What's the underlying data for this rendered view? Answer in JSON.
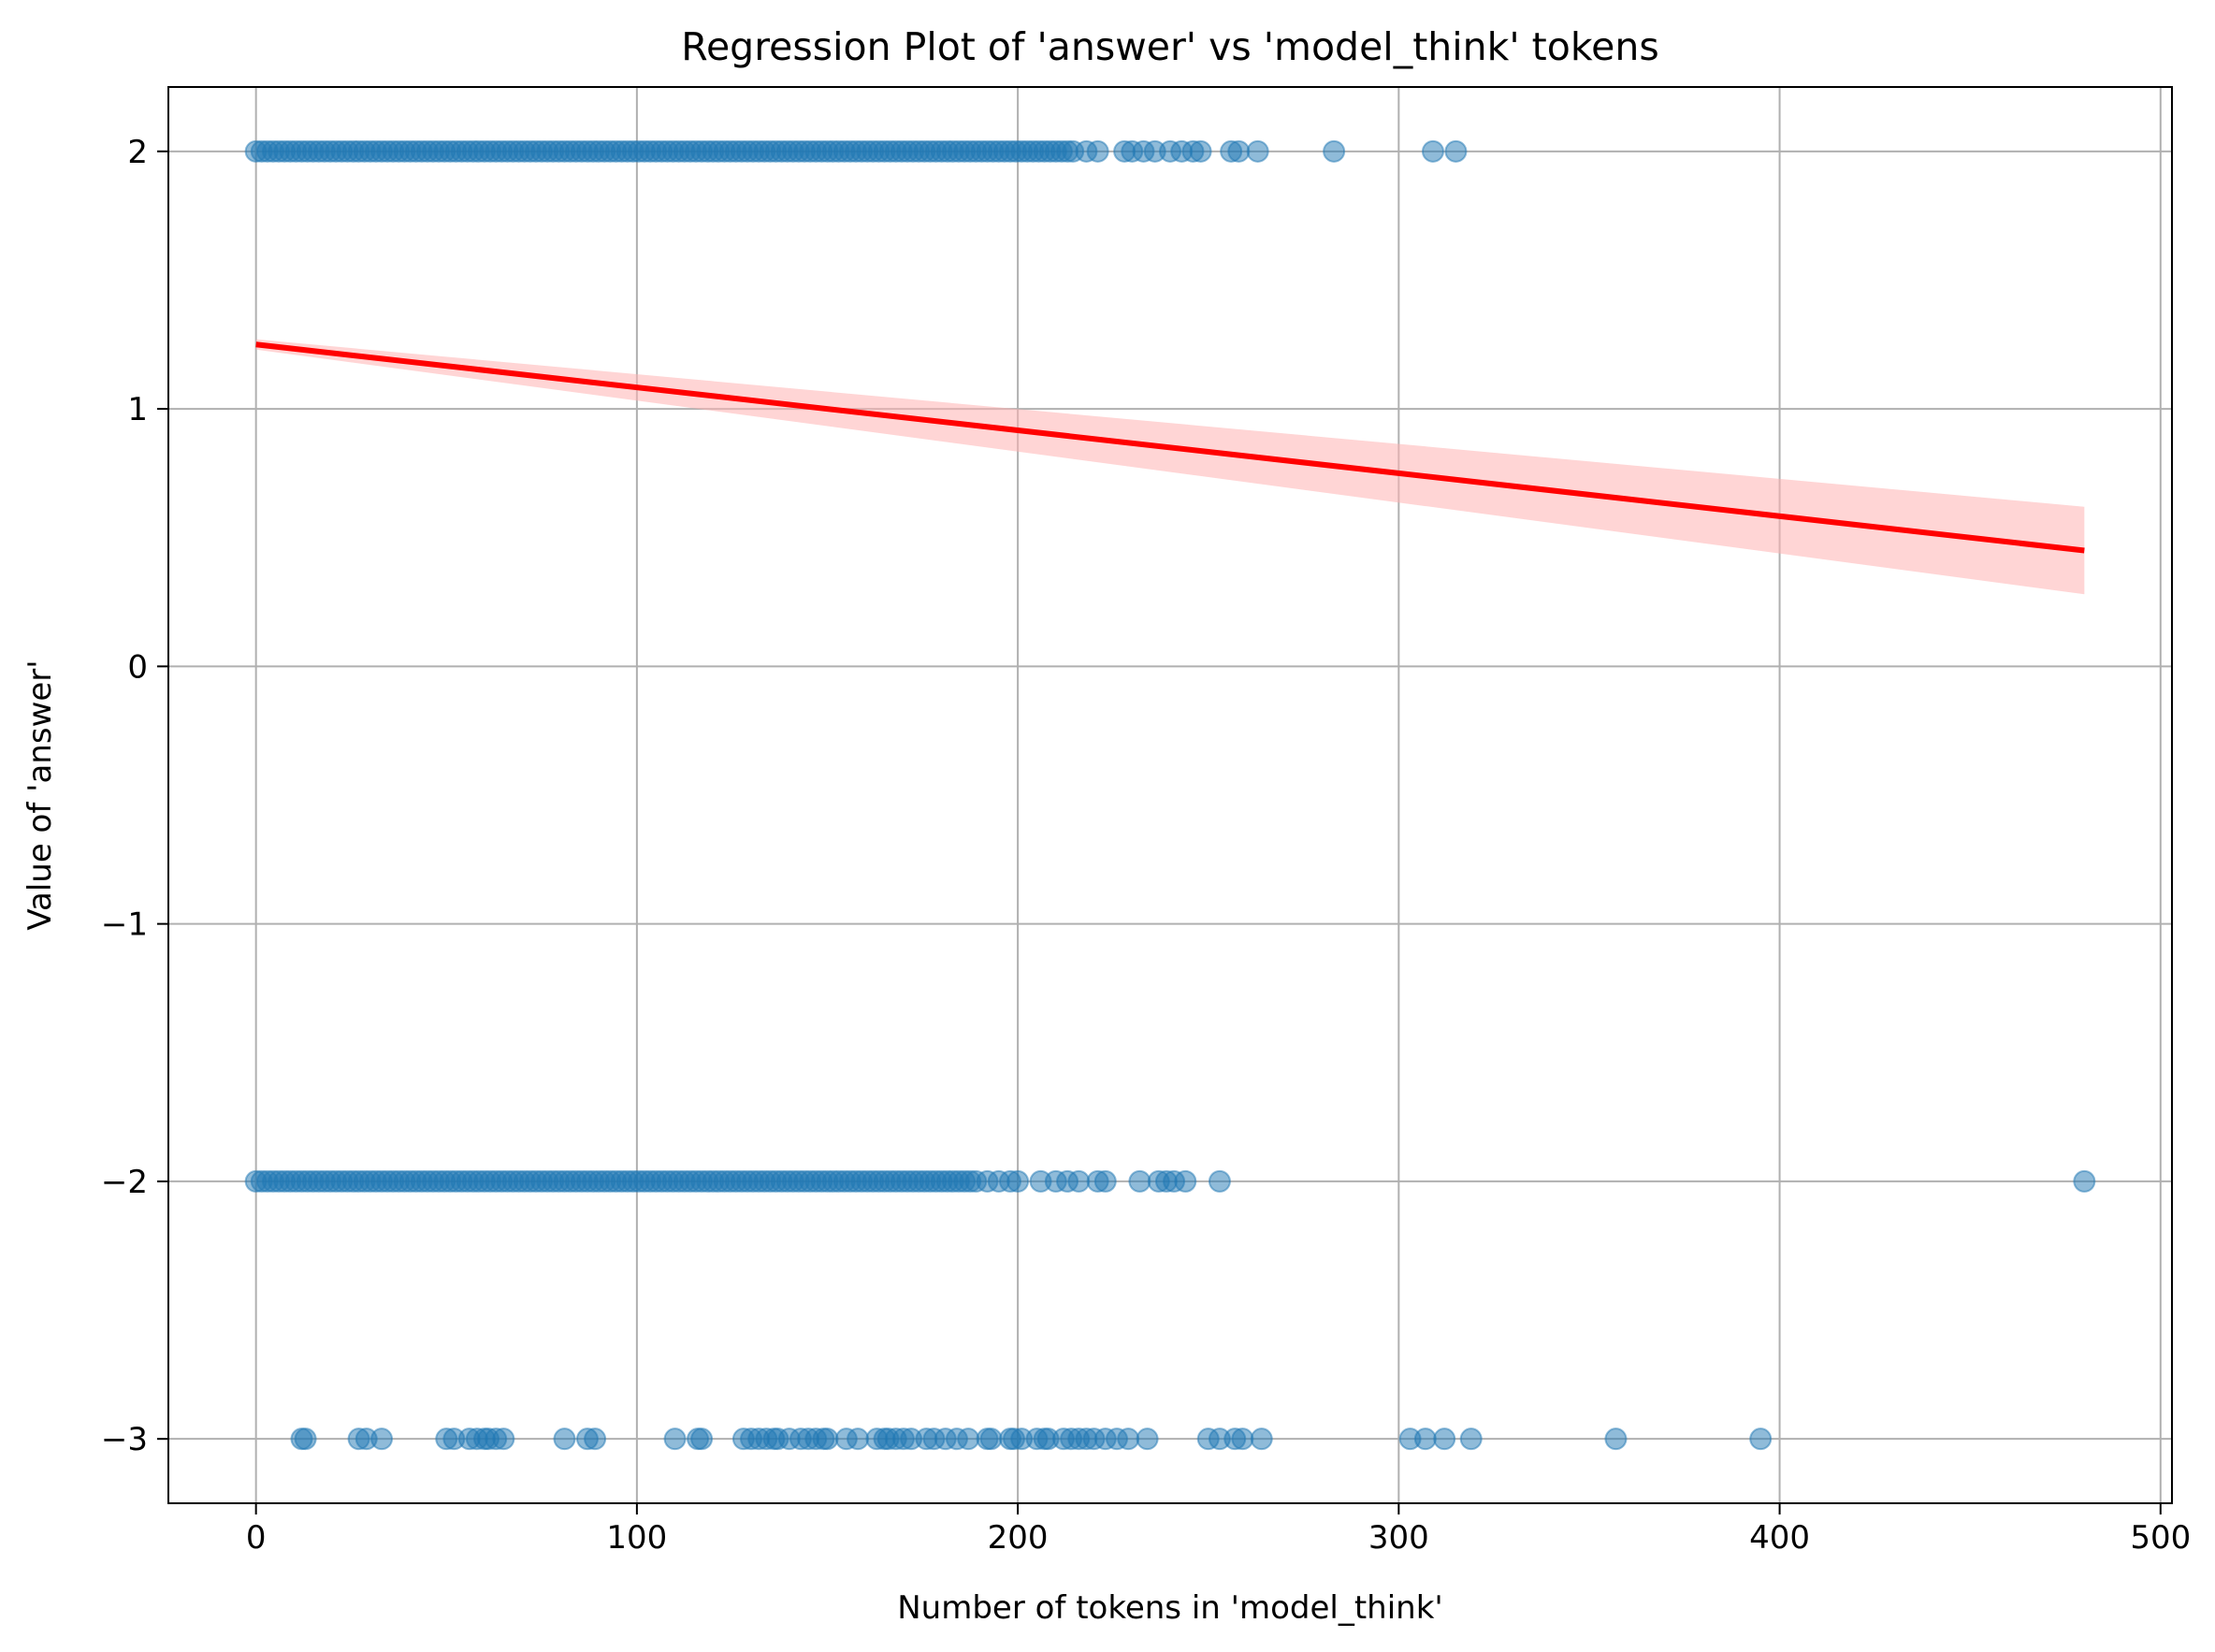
{
  "chart_data": {
    "type": "scatter",
    "title": "Regression Plot of 'answer' vs 'model_think' tokens",
    "xlabel": "Number of tokens in 'model_think'",
    "ylabel": "Value of 'answer'",
    "xlim": [
      -23,
      503
    ],
    "ylim": [
      -3.25,
      2.25
    ],
    "x_ticks": [
      0,
      100,
      200,
      300,
      400,
      500
    ],
    "y_ticks": [
      -3,
      -2,
      -1,
      0,
      1,
      2
    ],
    "x_tick_labels": [
      "0",
      "100",
      "200",
      "300",
      "400",
      "500"
    ],
    "y_tick_labels": [
      "−3",
      "−2",
      "−1",
      "0",
      "1",
      "2"
    ],
    "grid": true,
    "colors": {
      "points": "#1f77b4",
      "regression_line": "#ff0000",
      "confidence_band": "#ffb3b3",
      "grid": "#b0b0b0"
    },
    "series": [
      {
        "kind": "scatter",
        "dense_ranges": [
          {
            "y": 2,
            "x_from": 0,
            "x_to": 215
          },
          {
            "y": -2,
            "x_from": 0,
            "x_to": 190
          }
        ],
        "points": [
          {
            "x": 218,
            "y": 2
          },
          {
            "x": 221,
            "y": 2
          },
          {
            "x": 228,
            "y": 2
          },
          {
            "x": 230,
            "y": 2
          },
          {
            "x": 233,
            "y": 2
          },
          {
            "x": 236,
            "y": 2
          },
          {
            "x": 240,
            "y": 2
          },
          {
            "x": 243,
            "y": 2
          },
          {
            "x": 246,
            "y": 2
          },
          {
            "x": 248,
            "y": 2
          },
          {
            "x": 256,
            "y": 2
          },
          {
            "x": 258,
            "y": 2
          },
          {
            "x": 263,
            "y": 2
          },
          {
            "x": 283,
            "y": 2
          },
          {
            "x": 309,
            "y": 2
          },
          {
            "x": 315,
            "y": 2
          },
          {
            "x": 192,
            "y": -2
          },
          {
            "x": 195,
            "y": -2
          },
          {
            "x": 198,
            "y": -2
          },
          {
            "x": 200,
            "y": -2
          },
          {
            "x": 206,
            "y": -2
          },
          {
            "x": 210,
            "y": -2
          },
          {
            "x": 213,
            "y": -2
          },
          {
            "x": 216,
            "y": -2
          },
          {
            "x": 221,
            "y": -2
          },
          {
            "x": 223,
            "y": -2
          },
          {
            "x": 232,
            "y": -2
          },
          {
            "x": 237,
            "y": -2
          },
          {
            "x": 239,
            "y": -2
          },
          {
            "x": 241,
            "y": -2
          },
          {
            "x": 244,
            "y": -2
          },
          {
            "x": 253,
            "y": -2
          },
          {
            "x": 480,
            "y": -2
          },
          {
            "x": 12,
            "y": -3
          },
          {
            "x": 13,
            "y": -3
          },
          {
            "x": 27,
            "y": -3
          },
          {
            "x": 29,
            "y": -3
          },
          {
            "x": 33,
            "y": -3
          },
          {
            "x": 50,
            "y": -3
          },
          {
            "x": 52,
            "y": -3
          },
          {
            "x": 56,
            "y": -3
          },
          {
            "x": 58,
            "y": -3
          },
          {
            "x": 60,
            "y": -3
          },
          {
            "x": 61,
            "y": -3
          },
          {
            "x": 63,
            "y": -3
          },
          {
            "x": 65,
            "y": -3
          },
          {
            "x": 81,
            "y": -3
          },
          {
            "x": 87,
            "y": -3
          },
          {
            "x": 89,
            "y": -3
          },
          {
            "x": 110,
            "y": -3
          },
          {
            "x": 116,
            "y": -3
          },
          {
            "x": 117,
            "y": -3
          },
          {
            "x": 128,
            "y": -3
          },
          {
            "x": 130,
            "y": -3
          },
          {
            "x": 132,
            "y": -3
          },
          {
            "x": 134,
            "y": -3
          },
          {
            "x": 136,
            "y": -3
          },
          {
            "x": 137,
            "y": -3
          },
          {
            "x": 140,
            "y": -3
          },
          {
            "x": 143,
            "y": -3
          },
          {
            "x": 145,
            "y": -3
          },
          {
            "x": 147,
            "y": -3
          },
          {
            "x": 149,
            "y": -3
          },
          {
            "x": 150,
            "y": -3
          },
          {
            "x": 155,
            "y": -3
          },
          {
            "x": 158,
            "y": -3
          },
          {
            "x": 163,
            "y": -3
          },
          {
            "x": 165,
            "y": -3
          },
          {
            "x": 166,
            "y": -3
          },
          {
            "x": 168,
            "y": -3
          },
          {
            "x": 170,
            "y": -3
          },
          {
            "x": 172,
            "y": -3
          },
          {
            "x": 176,
            "y": -3
          },
          {
            "x": 178,
            "y": -3
          },
          {
            "x": 181,
            "y": -3
          },
          {
            "x": 184,
            "y": -3
          },
          {
            "x": 187,
            "y": -3
          },
          {
            "x": 192,
            "y": -3
          },
          {
            "x": 193,
            "y": -3
          },
          {
            "x": 198,
            "y": -3
          },
          {
            "x": 199,
            "y": -3
          },
          {
            "x": 201,
            "y": -3
          },
          {
            "x": 205,
            "y": -3
          },
          {
            "x": 207,
            "y": -3
          },
          {
            "x": 208,
            "y": -3
          },
          {
            "x": 212,
            "y": -3
          },
          {
            "x": 214,
            "y": -3
          },
          {
            "x": 216,
            "y": -3
          },
          {
            "x": 218,
            "y": -3
          },
          {
            "x": 220,
            "y": -3
          },
          {
            "x": 223,
            "y": -3
          },
          {
            "x": 226,
            "y": -3
          },
          {
            "x": 229,
            "y": -3
          },
          {
            "x": 234,
            "y": -3
          },
          {
            "x": 250,
            "y": -3
          },
          {
            "x": 253,
            "y": -3
          },
          {
            "x": 257,
            "y": -3
          },
          {
            "x": 259,
            "y": -3
          },
          {
            "x": 264,
            "y": -3
          },
          {
            "x": 303,
            "y": -3
          },
          {
            "x": 307,
            "y": -3
          },
          {
            "x": 312,
            "y": -3
          },
          {
            "x": 319,
            "y": -3
          },
          {
            "x": 357,
            "y": -3
          },
          {
            "x": 395,
            "y": -3
          }
        ]
      },
      {
        "kind": "regression_line",
        "x": [
          0,
          480
        ],
        "y": [
          1.25,
          0.45
        ],
        "confidence_band": {
          "x": [
            0,
            480
          ],
          "lower": [
            1.23,
            0.28
          ],
          "upper": [
            1.27,
            0.62
          ]
        }
      }
    ]
  }
}
